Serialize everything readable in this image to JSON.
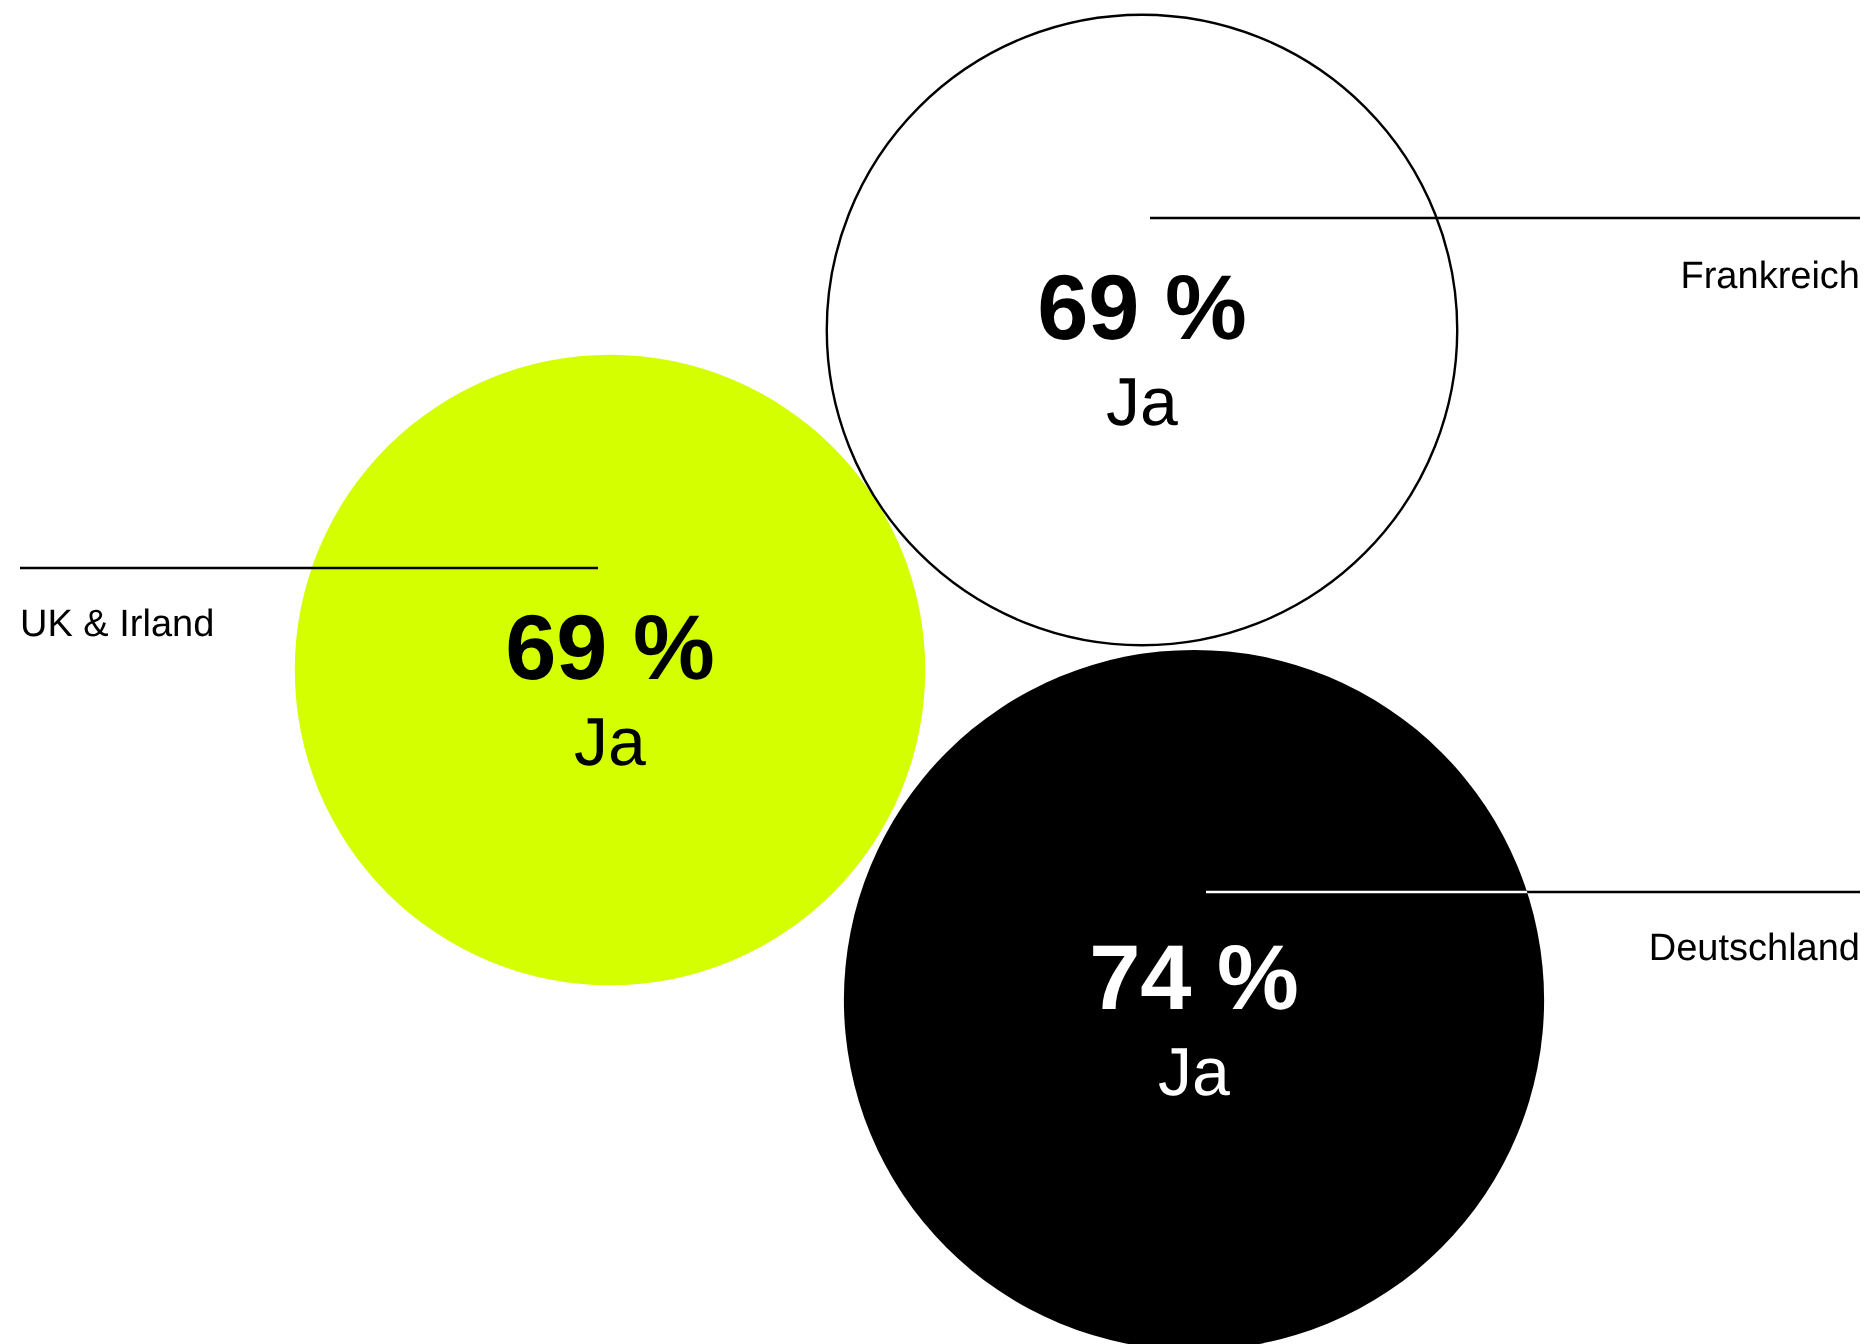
{
  "chart_data": {
    "type": "other",
    "categories": [
      "Frankreich",
      "UK & Irland",
      "Deutschland"
    ],
    "values": [
      69,
      69,
      74
    ],
    "value_labels": [
      "69 %",
      "69 %",
      "74 %"
    ],
    "colors": [
      "#ffffff",
      "#d4ff00",
      "#000000"
    ],
    "annotations": [
      "Ja",
      "Ja",
      "Ja"
    ]
  }
}
